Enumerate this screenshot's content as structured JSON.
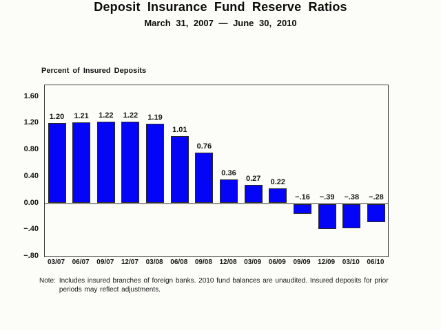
{
  "header": {
    "title": "Deposit Insurance Fund Reserve Ratios",
    "subtitle": "March 31, 2007 — June 30, 2010"
  },
  "chart_data": {
    "type": "bar",
    "title": "Deposit Insurance Fund Reserve Ratios",
    "subtitle": "March 31, 2007 — June 30, 2010",
    "axis_heading": "Percent of Insured Deposits",
    "xlabel": "",
    "ylabel": "Percent of Insured Deposits",
    "categories": [
      "03/07",
      "06/07",
      "09/07",
      "12/07",
      "03/08",
      "06/08",
      "09/08",
      "12/08",
      "03/09",
      "06/09",
      "09/09",
      "12/09",
      "03/10",
      "06/10"
    ],
    "values": [
      1.2,
      1.21,
      1.22,
      1.22,
      1.19,
      1.01,
      0.76,
      0.36,
      0.27,
      0.22,
      -0.16,
      -0.39,
      -0.38,
      -0.28
    ],
    "value_labels": [
      "1.20",
      "1.21",
      "1.22",
      "1.22",
      "1.19",
      "1.01",
      "0.76",
      "0.36",
      "0.27",
      "0.22",
      "−.16",
      "−.39",
      "−.38",
      "−.28"
    ],
    "y_ticks": [
      {
        "value": 1.6,
        "label": "1.60"
      },
      {
        "value": 1.2,
        "label": "1.20"
      },
      {
        "value": 0.8,
        "label": "0.80"
      },
      {
        "value": 0.4,
        "label": "0.40"
      },
      {
        "value": 0.0,
        "label": "0.00"
      },
      {
        "value": -0.4,
        "label": "−.40"
      },
      {
        "value": -0.8,
        "label": "−.80"
      }
    ],
    "ylim": [
      -0.8,
      1.77
    ],
    "grid": false,
    "legend": null,
    "bar_color": "#0404f6",
    "bar_border_color": "#26262b"
  },
  "note": {
    "prefix": "Note:",
    "lines": [
      "Includes insured branches of foreign banks. 2010 fund balances are unaudited. Insured deposits for prior",
      "periods may reflect adjustments."
    ]
  }
}
